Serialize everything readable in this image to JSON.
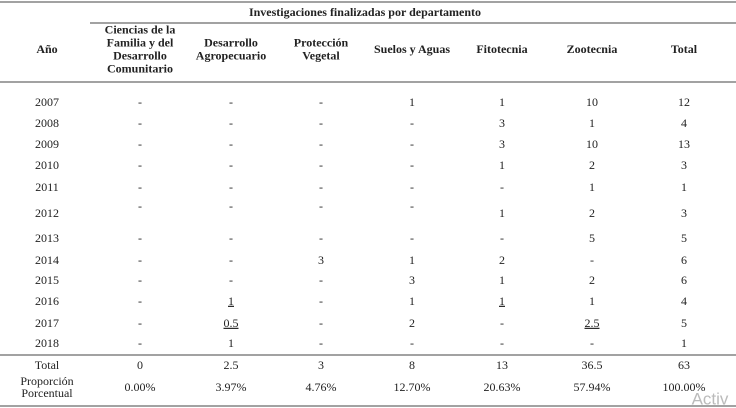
{
  "table": {
    "caption": "Investigaciones finalizadas por departamento",
    "columns": [
      [
        "Año"
      ],
      [
        "Ciencias de la",
        "Familia y del",
        "Desarrollo",
        "Comunitario"
      ],
      [
        "Desarrollo",
        "Agropecuario"
      ],
      [
        "Protección",
        "Vegetal"
      ],
      [
        "Suelos y Aguas"
      ],
      [
        "Fitotecnia"
      ],
      [
        "Zootecnia"
      ],
      [
        "Total"
      ]
    ],
    "rows": [
      [
        "2007",
        "-",
        "-",
        "-",
        "1",
        "1",
        "10",
        "12"
      ],
      [
        "2008",
        "-",
        "-",
        "-",
        "-",
        "3",
        "1",
        "4"
      ],
      [
        "2009",
        "-",
        "-",
        "-",
        "-",
        "3",
        "10",
        "13"
      ],
      [
        "2010",
        "-",
        "-",
        "-",
        "-",
        "1",
        "2",
        "3"
      ],
      [
        "2011",
        "-",
        "-",
        "-",
        "-",
        "-",
        "1",
        "1"
      ],
      [
        "2012",
        "-",
        "-",
        "-",
        "-",
        "1",
        "2",
        "3"
      ],
      [
        "2013",
        "-",
        "-",
        "-",
        "-",
        "-",
        "5",
        "5"
      ],
      [
        "2014",
        "-",
        "-",
        "3",
        "1",
        "2",
        "-",
        "6"
      ],
      [
        "2015",
        "-",
        "-",
        "-",
        "3",
        "1",
        "2",
        "6"
      ],
      [
        "2016",
        "-",
        "1",
        "-",
        "1",
        "1",
        "1",
        "4"
      ],
      [
        "2017",
        "-",
        "0.5",
        "-",
        "2",
        "-",
        "2.5",
        "5"
      ],
      [
        "2018",
        "-",
        "1",
        "-",
        "-",
        "-",
        "-",
        "1"
      ],
      [
        "Total",
        "0",
        "2.5",
        "3",
        "8",
        "13",
        "36.5",
        "63"
      ],
      [
        [
          "Proporción",
          "Porcentual"
        ],
        "0.00%",
        "3.97%",
        "4.76%",
        "12.70%",
        "20.63%",
        "57.94%",
        "100.00%"
      ]
    ],
    "watermark": "Activ"
  }
}
